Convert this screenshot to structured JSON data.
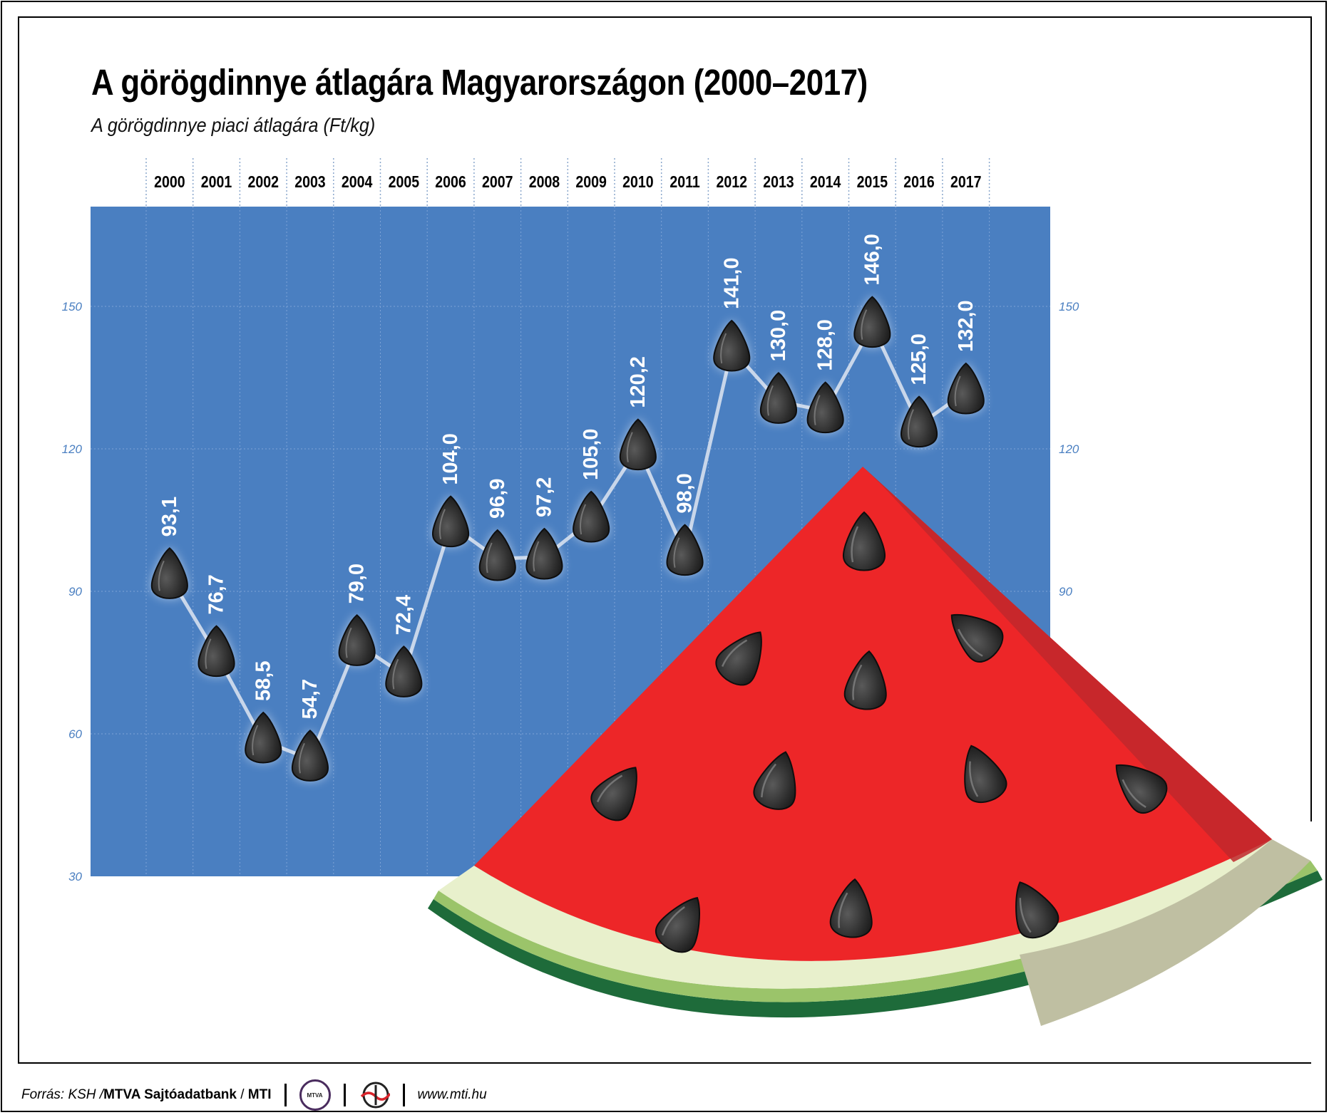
{
  "title": "A görögdinnye átlagára Magyarországon (2000–2017)",
  "subtitle": "A görögdinnye piaci átlagára (Ft/kg)",
  "chart_data": {
    "type": "line",
    "title": "A görögdinnye átlagára Magyarországon (2000–2017)",
    "subtitle": "A görögdinnye piaci átlagára (Ft/kg)",
    "categories": [
      "2000",
      "2001",
      "2002",
      "2003",
      "2004",
      "2005",
      "2006",
      "2007",
      "2008",
      "2009",
      "2010",
      "2011",
      "2012",
      "2013",
      "2014",
      "2015",
      "2016",
      "2017"
    ],
    "values": [
      93.1,
      76.7,
      58.5,
      54.7,
      79.0,
      72.4,
      104.0,
      96.9,
      97.2,
      105.0,
      120.2,
      98.0,
      141.0,
      130.0,
      128.0,
      146.0,
      125.0,
      132.0
    ],
    "value_labels": [
      "93,1",
      "76,7",
      "58,5",
      "54,7",
      "79,0",
      "72,4",
      "104,0",
      "96,9",
      "97,2",
      "105,0",
      "120,2",
      "98,0",
      "141,0",
      "130,0",
      "128,0",
      "146,0",
      "125,0",
      "132,0"
    ],
    "y_ticks": [
      30,
      60,
      90,
      120,
      150
    ],
    "ylim": [
      30,
      171
    ],
    "grid": true,
    "x_axis_position": "top",
    "colors": {
      "plot_bg": "#4a7fc1",
      "line": "#c8d6ea",
      "marker": "#2b2b2b",
      "label": "#ffffff",
      "tick": "#4a7fc1"
    }
  },
  "footer": {
    "source_prefix": "Forrás: KSH / ",
    "agency": "MTVA Sajtóadatbank",
    "slash": " / ",
    "mti": "MTI",
    "mtva_logo_text": "MTVA",
    "url": "www.mti.hu"
  }
}
